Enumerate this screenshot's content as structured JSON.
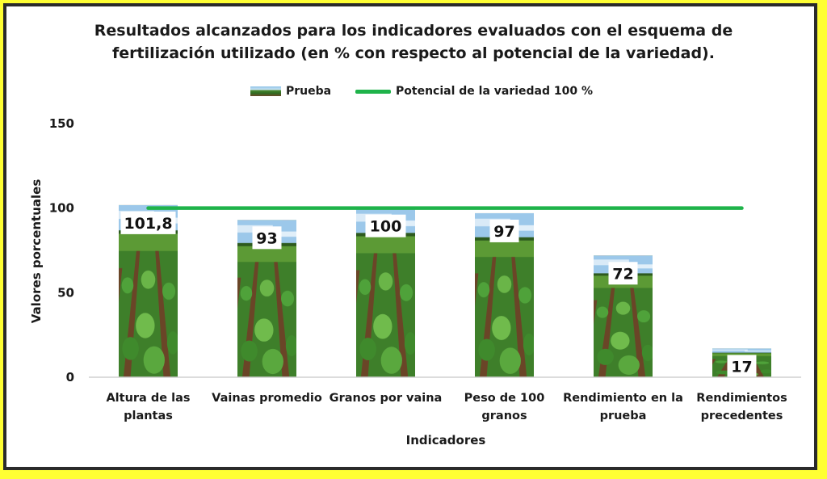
{
  "chart_data": {
    "type": "bar",
    "title_line1": "Resultados alcanzados para los indicadores evaluados con el esquema de",
    "title_line2": "fertilización utilizado  (en % con respecto al potencial de la variedad).",
    "xlabel": "Indicadores",
    "ylabel": "Valores porcentuales",
    "ylim": [
      0,
      150
    ],
    "yticks": [
      0,
      50,
      100,
      150
    ],
    "categories": [
      [
        "Altura de las",
        "plantas"
      ],
      [
        "Vainas promedio"
      ],
      [
        "Granos por vaina"
      ],
      [
        "Peso de 100",
        "granos"
      ],
      [
        "Rendimiento en la",
        "prueba"
      ],
      [
        "Rendimientos",
        "precedentes"
      ]
    ],
    "series": [
      {
        "name": "Prueba",
        "values": [
          101.8,
          93,
          100,
          97,
          72,
          17
        ],
        "fill": "crop-field-photo"
      }
    ],
    "data_labels": [
      "101,8",
      "93",
      "100",
      "97",
      "72",
      "17"
    ],
    "reference_line": {
      "name": "Potencial de la variedad 100 %",
      "value": 100,
      "color": "#1fb34a"
    },
    "legend_position": "top",
    "grid": false
  },
  "colors": {
    "background": "#ffff33",
    "plot_area": "#ffffff",
    "line": "#1fb34a"
  }
}
